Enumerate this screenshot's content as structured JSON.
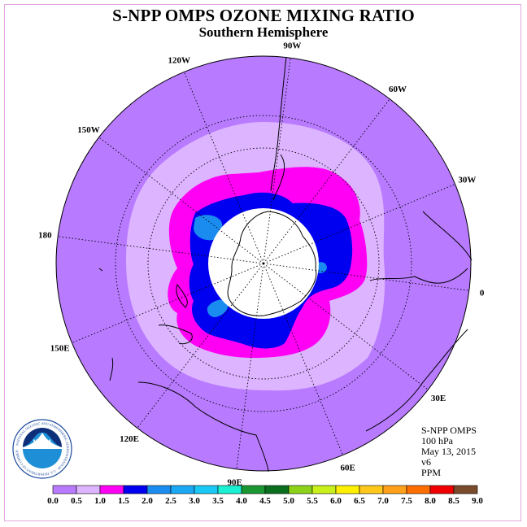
{
  "title": "S-NPP OMPS OZONE MIXING RATIO",
  "subtitle": "Southern Hemisphere",
  "info": {
    "instrument": "S-NPP OMPS",
    "level": "100 hPa",
    "date": "May 13, 2015",
    "version": "v6",
    "units": "PPM"
  },
  "logo": {
    "text": "NOAA",
    "ring_text": "NATIONAL OCEANIC AND ATMOSPHERIC ADMINISTRATION · U.S. DEPARTMENT OF COMMERCE"
  },
  "map": {
    "projection": "south-polar-stereographic",
    "longitude_labels": [
      {
        "label": "0",
        "lon": 0
      },
      {
        "label": "30E",
        "lon": 30
      },
      {
        "label": "60E",
        "lon": 60
      },
      {
        "label": "90E",
        "lon": 90
      },
      {
        "label": "120E",
        "lon": 120
      },
      {
        "label": "150E",
        "lon": 150
      },
      {
        "label": "180",
        "lon": 180
      },
      {
        "label": "150W",
        "lon": -150
      },
      {
        "label": "120W",
        "lon": -120
      },
      {
        "label": "90W",
        "lon": -90
      },
      {
        "label": "60W",
        "lon": -60
      },
      {
        "label": "30W",
        "lon": -30
      }
    ],
    "latitude_circles": [
      -30,
      -60
    ],
    "field_summary": "maximum 1.5-2.0 PPM ring around Antarctica with 2.0-2.5 PPM pockets; no data poleward of ~-72"
  },
  "legend": {
    "levels": [
      "0.0",
      "0.5",
      "1.0",
      "1.5",
      "2.0",
      "2.5",
      "3.0",
      "3.5",
      "4.0",
      "4.5",
      "5.0",
      "5.5",
      "6.0",
      "6.5",
      "7.0",
      "7.5",
      "8.0",
      "8.5",
      "9.0"
    ],
    "colors": [
      "#b87aff",
      "#ddb4ff",
      "#ff00f5",
      "#0000f0",
      "#1a8cf0",
      "#1aa8f5",
      "#1ac8f5",
      "#1af0d2",
      "#1a9632",
      "#0a6e1e",
      "#8cd21a",
      "#c8f01a",
      "#fff000",
      "#ffc81a",
      "#ffa01a",
      "#ff6e00",
      "#f00000",
      "#7a4a2c"
    ]
  }
}
